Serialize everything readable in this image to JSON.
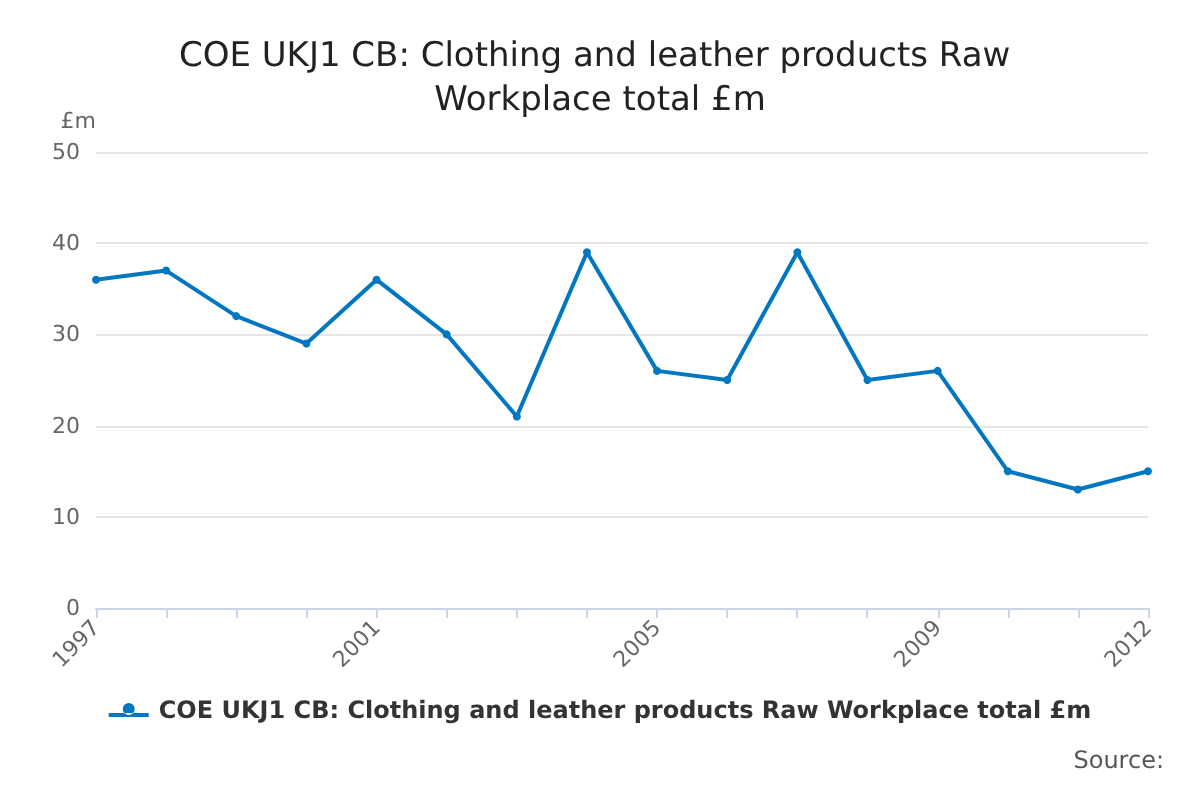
{
  "chart_data": {
    "type": "line",
    "title": "COE UKJ1 CB: Clothing and leather products Raw Workplace total £m",
    "ylabel": "£m",
    "categories": [
      "1997",
      null,
      null,
      null,
      "2001",
      null,
      null,
      null,
      "2005",
      null,
      null,
      null,
      "2009",
      null,
      null,
      "2012"
    ],
    "series": [
      {
        "name": "COE UKJ1 CB: Clothing and leather products Raw Workplace total £m",
        "color": "#0077c0",
        "values": [
          36,
          37,
          32,
          29,
          36,
          30,
          21,
          39,
          26,
          25,
          39,
          25,
          26,
          15,
          13,
          15
        ]
      }
    ],
    "ylim": [
      0,
      50
    ],
    "yticks": [
      0,
      10,
      20,
      30,
      40,
      50
    ],
    "grid": "y",
    "legend": "bottom",
    "marker": "circle",
    "line_style": "solid",
    "annotations": [
      "Source:"
    ]
  }
}
